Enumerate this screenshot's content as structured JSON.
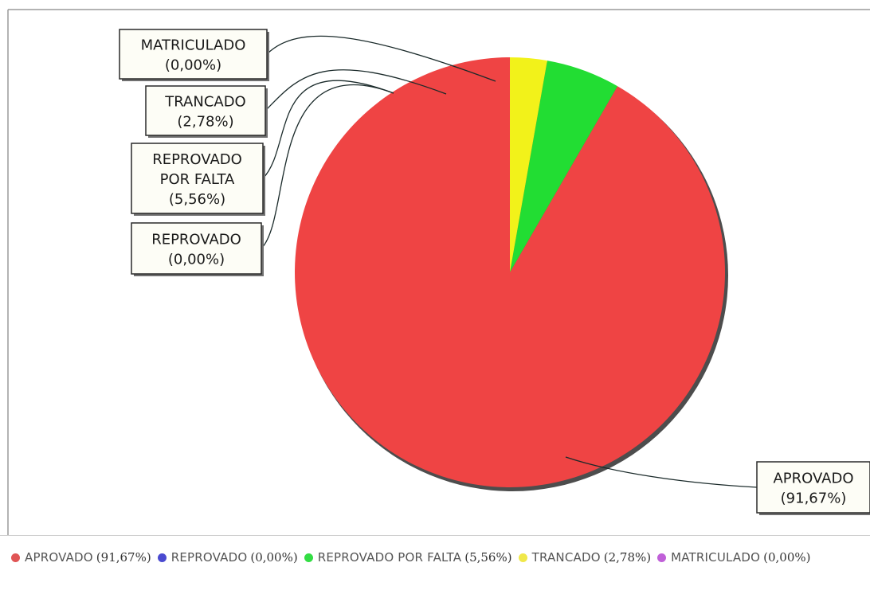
{
  "chart_data": {
    "type": "pie",
    "title": "",
    "slices": [
      {
        "label": "APROVADO",
        "pct_label": "(91,67%)",
        "value": 91.67,
        "color": "#ef4444"
      },
      {
        "label": "REPROVADO",
        "pct_label": "(0,00%)",
        "value": 0.0,
        "color": "#4f4fd6"
      },
      {
        "label": "REPROVADO POR FALTA",
        "pct_label": "(5,56%)",
        "value": 5.56,
        "color": "#22dd33"
      },
      {
        "label": "TRANCADO",
        "pct_label": "(2,78%)",
        "value": 2.78,
        "color": "#f2f21a"
      },
      {
        "label": "MATRICULADO",
        "pct_label": "(0,00%)",
        "value": 0.0,
        "color": "#c060d8"
      }
    ],
    "callouts": [
      {
        "lines": [
          "MATRICULADO",
          "(0,00%)"
        ]
      },
      {
        "lines": [
          "TRANCADO",
          "(2,78%)"
        ]
      },
      {
        "lines": [
          "REPROVADO",
          "POR FALTA",
          "(5,56%)"
        ]
      },
      {
        "lines": [
          "REPROVADO",
          "(0,00%)"
        ]
      },
      {
        "lines": [
          "APROVADO",
          "(91,67%)"
        ]
      }
    ],
    "legend": {
      "placement": "bottom",
      "items": [
        {
          "label": "APROVADO",
          "pct": "(91,67%)",
          "color": "#e05555"
        },
        {
          "label": "REPROVADO",
          "pct": "(0,00%)",
          "color": "#4a4ad0"
        },
        {
          "label": "REPROVADO POR FALTA",
          "pct": "(5,56%)",
          "color": "#33dd44"
        },
        {
          "label": "TRANCADO",
          "pct": "(2,78%)",
          "color": "#f0e84a"
        },
        {
          "label": "MATRICULADO",
          "pct": "(0,00%)",
          "color": "#c060d8"
        }
      ]
    }
  }
}
